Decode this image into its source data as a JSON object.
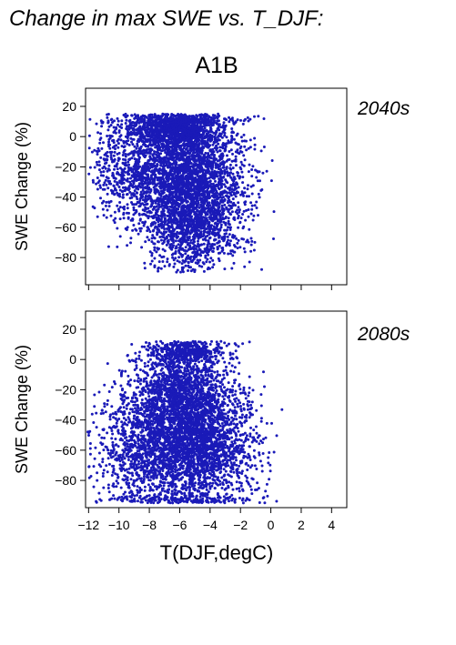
{
  "header": {
    "title": "Change in max SWE vs. T_DJF:",
    "scenario": "A1B"
  },
  "colors": {
    "points": "#1a1ab8",
    "period_label": "#2222aa",
    "axis": "#000000"
  },
  "chart_data": [
    {
      "type": "scatter",
      "period": "2040s",
      "ylabel": "SWE Change (%)",
      "xlabel": "",
      "xlim": [
        -12.2,
        5
      ],
      "ylim": [
        -98,
        32
      ],
      "yticks": [
        20,
        0,
        -20,
        -40,
        -60,
        -80
      ],
      "xticks": [
        -12,
        -10,
        -8,
        -6,
        -4,
        -2,
        0,
        2,
        4
      ],
      "show_x_tick_labels": false,
      "grid": false,
      "point_clusters": [
        {
          "x_mean": -5.5,
          "x_sd": 1.9,
          "y_mean": -25,
          "y_sd": 22,
          "weight": 0.55
        },
        {
          "x_mean": -6.5,
          "x_sd": 1.3,
          "y_mean": 5,
          "y_sd": 5,
          "weight": 0.18
        },
        {
          "x_mean": -5.0,
          "x_sd": 1.5,
          "y_mean": -60,
          "y_sd": 15,
          "weight": 0.17
        },
        {
          "x_mean": -9.5,
          "x_sd": 1.3,
          "y_mean": -20,
          "y_sd": 18,
          "weight": 0.1
        }
      ],
      "n_points": 5200,
      "y_range": [
        -90,
        15
      ],
      "x_range": [
        -12.1,
        0.8
      ]
    },
    {
      "type": "scatter",
      "period": "2080s",
      "ylabel": "SWE Change (%)",
      "xlabel": "T(DJF,degC)",
      "xlim": [
        -12.2,
        5
      ],
      "ylim": [
        -98,
        32
      ],
      "yticks": [
        20,
        0,
        -20,
        -40,
        -60,
        -80
      ],
      "xticks": [
        -12,
        -10,
        -8,
        -6,
        -4,
        -2,
        0,
        2,
        4
      ],
      "xtick_labels": [
        "−12",
        "−10",
        "−8",
        "−6",
        "−4",
        "−2",
        "0",
        "2",
        "4"
      ],
      "show_x_tick_labels": true,
      "grid": false,
      "point_clusters": [
        {
          "x_mean": -5.3,
          "x_sd": 2.0,
          "y_mean": -55,
          "y_sd": 22,
          "weight": 0.6
        },
        {
          "x_mean": -6.0,
          "x_sd": 1.5,
          "y_mean": -20,
          "y_sd": 15,
          "weight": 0.2
        },
        {
          "x_mean": -5.5,
          "x_sd": 1.2,
          "y_mean": 5,
          "y_sd": 4,
          "weight": 0.08
        },
        {
          "x_mean": -9.0,
          "x_sd": 1.5,
          "y_mean": -60,
          "y_sd": 20,
          "weight": 0.12
        }
      ],
      "n_points": 5200,
      "y_range": [
        -95,
        12
      ],
      "x_range": [
        -12.1,
        0.8
      ]
    }
  ]
}
